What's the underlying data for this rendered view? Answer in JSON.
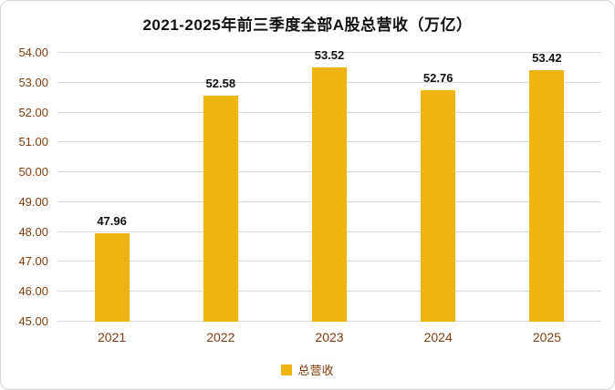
{
  "chart_data": {
    "type": "bar",
    "title": "2021-2025年前三季度全部A股总营收（万亿）",
    "categories": [
      "2021",
      "2022",
      "2023",
      "2024",
      "2025"
    ],
    "series": [
      {
        "name": "总营收",
        "values": [
          47.96,
          52.58,
          53.52,
          52.76,
          53.42
        ]
      }
    ],
    "data_labels": [
      "47.96",
      "52.58",
      "53.52",
      "52.76",
      "53.42"
    ],
    "xlabel": "",
    "ylabel": "",
    "ylim": [
      45,
      54
    ],
    "ytick_step": 1,
    "ytick_labels": [
      "45.00",
      "46.00",
      "47.00",
      "48.00",
      "49.00",
      "50.00",
      "51.00",
      "52.00",
      "53.00",
      "54.00"
    ],
    "grid": true,
    "legend": {
      "position": "bottom",
      "entries": [
        "总营收"
      ]
    },
    "colors": {
      "bar": "#F0B410",
      "axis_label": "#843C0C",
      "gridline": "#D9D9D9",
      "title": "#111111",
      "data_label": "#111111"
    }
  }
}
